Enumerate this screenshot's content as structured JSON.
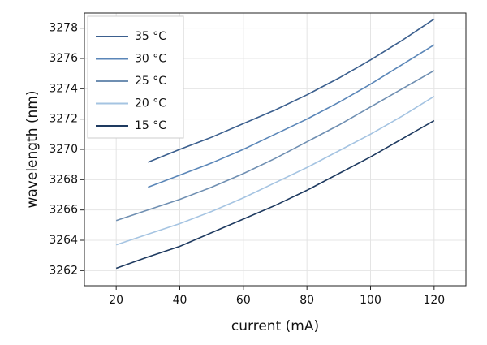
{
  "chart_data": {
    "type": "line",
    "x_label": "current (mA)",
    "y_label": "wavelength (nm)",
    "x": [
      20,
      30,
      40,
      50,
      60,
      70,
      80,
      90,
      100,
      110,
      120
    ],
    "series": [
      {
        "name": "35 °C",
        "color": "#3b5f8e",
        "values": [
          null,
          3269.15,
          3270.0,
          3270.8,
          3271.7,
          3272.6,
          3273.6,
          3274.7,
          3275.9,
          3277.2,
          3278.6
        ]
      },
      {
        "name": "30 °C",
        "color": "#5a86b8",
        "values": [
          null,
          3267.5,
          3268.3,
          3269.1,
          3270.0,
          3271.0,
          3272.0,
          3273.1,
          3274.3,
          3275.6,
          3276.9
        ]
      },
      {
        "name": "25 °C",
        "color": "#6f8fb2",
        "values": [
          3265.3,
          3266.0,
          3266.7,
          3267.5,
          3268.4,
          3269.4,
          3270.5,
          3271.6,
          3272.8,
          3274.0,
          3275.2
        ]
      },
      {
        "name": "20 °C",
        "color": "#a5c4e2",
        "values": [
          3263.7,
          3264.4,
          3265.1,
          3265.9,
          3266.8,
          3267.8,
          3268.8,
          3269.9,
          3271.0,
          3272.2,
          3273.5
        ]
      },
      {
        "name": "15 °C",
        "color": "#1e3a60",
        "values": [
          3262.15,
          3262.9,
          3263.6,
          3264.5,
          3265.4,
          3266.3,
          3267.3,
          3268.4,
          3269.5,
          3270.7,
          3271.9
        ]
      }
    ],
    "xlim": [
      10,
      130
    ],
    "xticks": [
      20,
      40,
      60,
      80,
      100,
      120
    ],
    "ylim": [
      3261,
      3279
    ],
    "yticks": [
      3262,
      3264,
      3266,
      3268,
      3270,
      3272,
      3274,
      3276,
      3278
    ],
    "grid": true,
    "legend": "upper left"
  }
}
